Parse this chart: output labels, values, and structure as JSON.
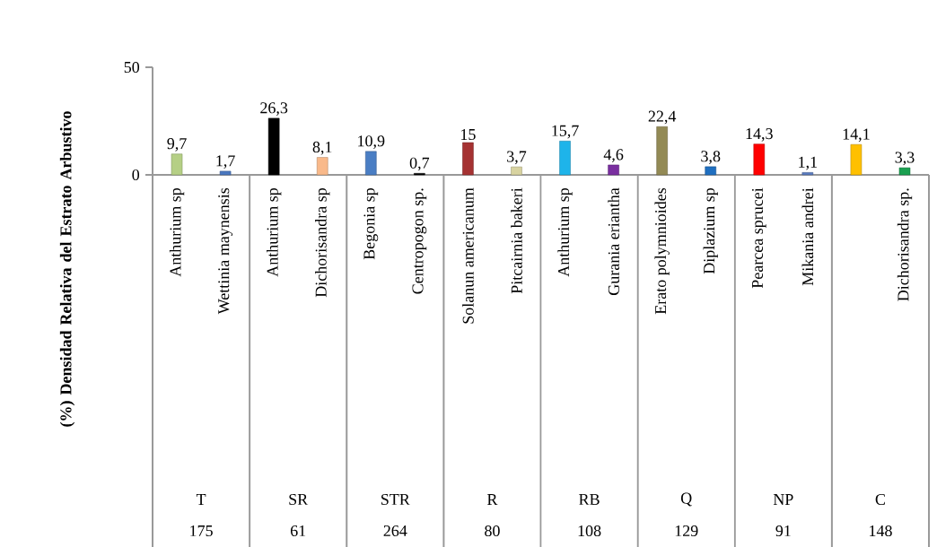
{
  "chart_data": {
    "type": "bar",
    "ylabel": "(%) Densidad Relativa del Estrato Arbustivo",
    "categories": [
      "Anthurium sp",
      "Wettinia maynensis",
      "Anthurium sp",
      "Dichorisandra sp",
      "Begonia sp",
      "Centropogon sp.",
      "Solanun americanum",
      "Pitcairnia bakeri",
      "Anthurium sp",
      "Gurania eriantha",
      "Erato polymnioides",
      "Diplazium sp",
      "Pearcea sprucei",
      "Mikania andrei",
      null,
      "Dichorisandra sp."
    ],
    "values": [
      9.7,
      1.7,
      26.3,
      8.1,
      10.9,
      0.7,
      15,
      3.7,
      15.7,
      4.6,
      22.4,
      3.8,
      14.3,
      1.1,
      14.1,
      3.3
    ],
    "value_labels": [
      "9,7",
      "1,7",
      "26,3",
      "8,1",
      "10,9",
      "0,7",
      "15",
      "3,7",
      "15,7",
      "4,6",
      "22,4",
      "3,8",
      "14,3",
      "1,1",
      "14,1",
      "3,3"
    ],
    "colors": [
      "#b5cf85",
      "#4a78c0",
      "#000000",
      "#f9b98a",
      "#4a7ec4",
      "#000000",
      "#a53232",
      "#d8d3a0",
      "#1eb4ea",
      "#7a2fa0",
      "#938a55",
      "#1f6fc0",
      "#ff0000",
      "#5a7cc0",
      "#ffc000",
      "#1aa050"
    ],
    "ylim": [
      0,
      50
    ],
    "yticks": [
      0,
      50
    ],
    "grid": false,
    "annotations": [
      "T",
      "SR",
      "STR",
      "R",
      "RB",
      "Q",
      "NP",
      "C",
      "175",
      "61",
      "264",
      "80",
      "108",
      "129",
      "91",
      "148"
    ]
  }
}
